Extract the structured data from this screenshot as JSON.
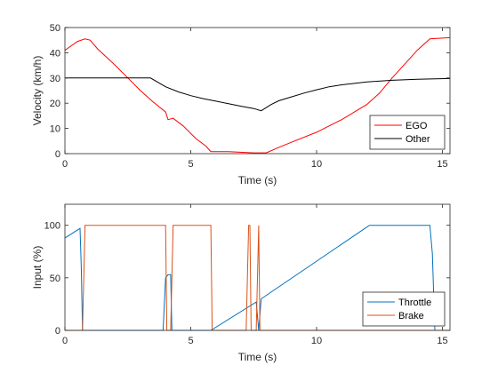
{
  "chart_data": [
    {
      "type": "line",
      "xlabel": "Time (s)",
      "ylabel": "Velocity (km/h)",
      "xlim": [
        0,
        15.3
      ],
      "ylim": [
        0,
        50
      ],
      "xticks": [
        "0",
        "5",
        "10",
        "15"
      ],
      "yticks": [
        "0",
        "10",
        "20",
        "30",
        "40",
        "50"
      ],
      "grid": false,
      "legend": "bottom-right",
      "series": [
        {
          "name": "EGO",
          "color": "#ff0000",
          "x": [
            0,
            0.5,
            0.8,
            1.0,
            1.3,
            2.0,
            2.5,
            3.0,
            3.5,
            4.0,
            4.1,
            4.3,
            4.7,
            5.2,
            5.6,
            5.8,
            6.5,
            7.5,
            8.0,
            8.5,
            9.0,
            10.0,
            11.0,
            11.5,
            12.0,
            12.5,
            13.0,
            13.5,
            14.0,
            14.5,
            15.3
          ],
          "y": [
            41,
            44.5,
            45.5,
            45,
            41.5,
            35,
            30,
            25,
            20.5,
            16.5,
            13.5,
            14,
            11,
            6,
            3,
            0.8,
            0.8,
            0.3,
            0.3,
            2.5,
            4.5,
            8.5,
            13.5,
            16.5,
            19.5,
            24,
            30,
            35.5,
            41,
            45.5,
            46
          ]
        },
        {
          "name": "Other",
          "color": "#000000",
          "x": [
            0,
            1,
            2,
            3,
            3.4,
            4,
            4.5,
            5,
            5.5,
            6,
            6.5,
            7,
            7.5,
            7.8,
            8.2,
            8.5,
            9,
            9.5,
            10,
            10.5,
            11,
            12,
            13,
            14,
            15.3
          ],
          "y": [
            30,
            30,
            30,
            30,
            30,
            26.5,
            24.5,
            23,
            21.8,
            20.8,
            19.8,
            18.8,
            17.9,
            17,
            19.5,
            21,
            22.5,
            24,
            25.3,
            26.5,
            27.3,
            28.4,
            29.1,
            29.5,
            29.8
          ]
        }
      ]
    },
    {
      "type": "line",
      "xlabel": "Time (s)",
      "ylabel": "Input (%)",
      "xlim": [
        0,
        15.3
      ],
      "ylim": [
        0,
        120
      ],
      "xticks": [
        "0",
        "5",
        "10",
        "15"
      ],
      "yticks": [
        "0",
        "50",
        "100"
      ],
      "grid": false,
      "legend": "bottom-right",
      "series": [
        {
          "name": "Throttle",
          "color": "#0072bd",
          "x": [
            0,
            0.6,
            0.65,
            0.7,
            3.9,
            4.0,
            4.1,
            4.2,
            4.25,
            5.8,
            7.6,
            7.7,
            7.8,
            12.1,
            14.5,
            14.6,
            14.7,
            15.3
          ],
          "y": [
            88,
            97,
            60,
            0,
            0,
            50,
            53,
            53,
            0,
            0,
            27,
            0,
            30,
            100,
            100,
            73,
            0,
            0
          ]
        },
        {
          "name": "Brake",
          "color": "#d95319",
          "x": [
            0,
            0.7,
            0.8,
            4.0,
            4.05,
            4.2,
            4.3,
            5.8,
            5.85,
            7.2,
            7.3,
            7.35,
            7.4,
            7.6,
            7.7,
            7.75,
            15.3
          ],
          "y": [
            0,
            0,
            100,
            100,
            0,
            0,
            100,
            100,
            0,
            0,
            100,
            100,
            0,
            0,
            100,
            0,
            0
          ]
        }
      ]
    }
  ]
}
